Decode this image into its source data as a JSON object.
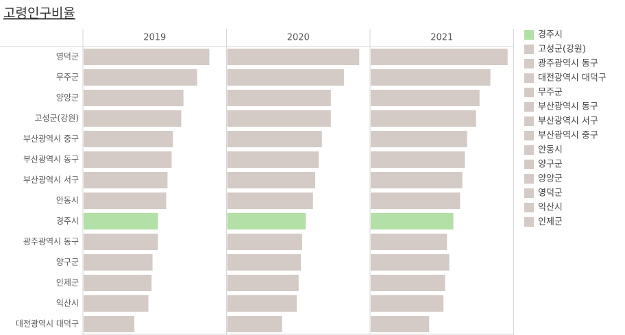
{
  "chart_data": {
    "type": "bar",
    "orientation": "horizontal",
    "title": "고령인구비율",
    "categories": [
      "영덕군",
      "무주군",
      "양양군",
      "고성군(강원)",
      "부산광역시 중구",
      "부산광역시 동구",
      "부산광역시 서구",
      "안동시",
      "경주시",
      "광주광역시 동구",
      "양구군",
      "인제군",
      "익산시",
      "대전광역시 대덕구"
    ],
    "xlim": [
      0,
      45
    ],
    "series": [
      {
        "name": "2019",
        "values": [
          39.4,
          35.6,
          31.3,
          30.6,
          28.0,
          27.6,
          26.3,
          25.9,
          23.3,
          23.3,
          21.6,
          21.3,
          20.3,
          15.9
        ]
      },
      {
        "name": "2020",
        "values": [
          41.4,
          36.6,
          32.5,
          32.5,
          29.7,
          28.7,
          27.6,
          26.9,
          24.6,
          23.5,
          23.1,
          22.4,
          21.8,
          17.2
        ]
      },
      {
        "name": "2021",
        "values": [
          42.9,
          37.5,
          34.1,
          33.0,
          30.2,
          29.5,
          28.7,
          28.0,
          25.9,
          23.9,
          24.6,
          23.3,
          22.8,
          18.3
        ]
      }
    ],
    "legend": [
      {
        "name": "경주시",
        "color": "#b3e0a6"
      },
      {
        "name": "고성군(강원)",
        "color": "#d4cbc6"
      },
      {
        "name": "광주광역시 동구",
        "color": "#d4cbc6"
      },
      {
        "name": "대전광역시 대덕구",
        "color": "#d4cbc6"
      },
      {
        "name": "무주군",
        "color": "#d4cbc6"
      },
      {
        "name": "부산광역시 동구",
        "color": "#d4cbc6"
      },
      {
        "name": "부산광역시 서구",
        "color": "#d4cbc6"
      },
      {
        "name": "부산광역시 중구",
        "color": "#d4cbc6"
      },
      {
        "name": "안동시",
        "color": "#d4cbc6"
      },
      {
        "name": "양구군",
        "color": "#d4cbc6"
      },
      {
        "name": "양양군",
        "color": "#d4cbc6"
      },
      {
        "name": "영덕군",
        "color": "#d4cbc6"
      },
      {
        "name": "익산시",
        "color": "#d4cbc6"
      },
      {
        "name": "인제군",
        "color": "#d4cbc6"
      }
    ]
  }
}
